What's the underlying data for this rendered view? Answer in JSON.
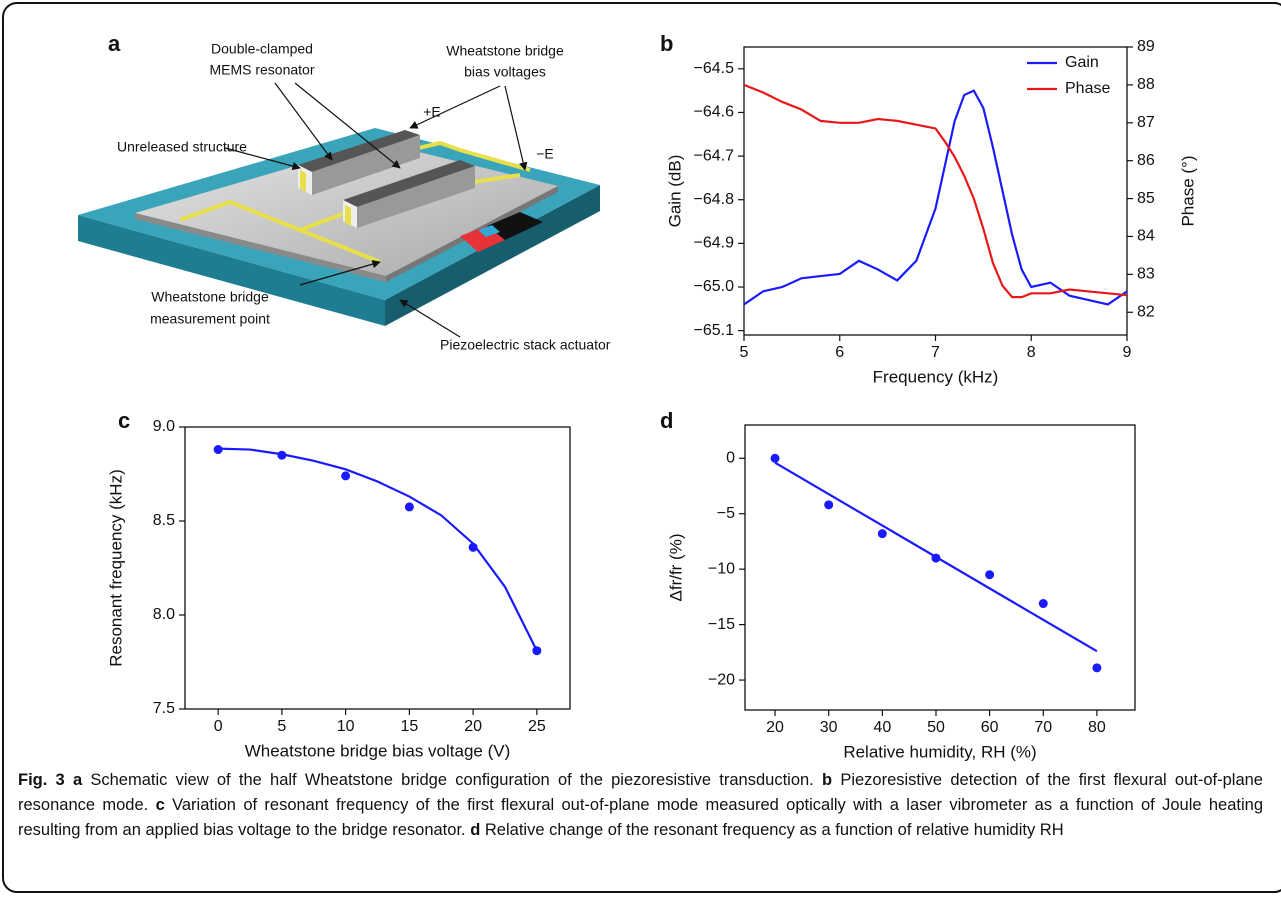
{
  "panel_labels": [
    "a",
    "b",
    "c",
    "d"
  ],
  "schematic": {
    "labels": [
      "Double-clamped",
      "MEMS resonator",
      "Wheatstone bridge",
      "bias voltages",
      "+E",
      "−E",
      "Unreleased structure",
      "Wheatstone bridge",
      "measurement point",
      "Piezoelectric stack actuator"
    ]
  },
  "chart_data": [
    {
      "type": "line",
      "x_label": "Frequency (kHz)",
      "y_label": "Gain (dB)",
      "y2_label": "Phase (°)",
      "x": [
        5,
        5.2,
        5.4,
        5.6,
        5.8,
        6.0,
        6.2,
        6.4,
        6.6,
        6.8,
        7.0,
        7.1,
        7.2,
        7.3,
        7.4,
        7.5,
        7.6,
        7.7,
        7.8,
        7.9,
        8.0,
        8.2,
        8.4,
        8.6,
        8.8,
        9.0
      ],
      "series": [
        {
          "name": "Gain",
          "color": "#1a1aff",
          "values": [
            -65.04,
            -65.01,
            -65.0,
            -64.98,
            -64.975,
            -64.97,
            -64.94,
            -64.96,
            -64.985,
            -64.94,
            -64.82,
            -64.72,
            -64.62,
            -64.56,
            -64.55,
            -64.59,
            -64.68,
            -64.78,
            -64.88,
            -64.96,
            -65.0,
            -64.99,
            -65.02,
            -65.03,
            -65.04,
            -65.01
          ]
        },
        {
          "name": "Phase",
          "color": "#e8181a",
          "axis": "y2",
          "values": [
            88.0,
            87.8,
            87.55,
            87.35,
            87.05,
            87.0,
            87.0,
            87.1,
            87.05,
            86.95,
            86.85,
            86.5,
            86.1,
            85.6,
            85.0,
            84.2,
            83.3,
            82.7,
            82.4,
            82.4,
            82.5,
            82.5,
            82.6,
            82.55,
            82.5,
            82.45
          ]
        }
      ],
      "xlim": [
        5,
        9
      ],
      "xticks": [
        5,
        6,
        7,
        8,
        9
      ],
      "ylim": [
        -65.11,
        -64.45
      ],
      "yticks": [
        {
          "value": -64.5,
          "label": "−64.5"
        },
        {
          "value": -64.6,
          "label": "−64.6"
        },
        {
          "value": -64.7,
          "label": "−64.7"
        },
        {
          "value": -64.8,
          "label": "−64.8"
        },
        {
          "value": -64.9,
          "label": "−64.9"
        },
        {
          "value": -65.0,
          "label": "−65.0"
        },
        {
          "value": -65.1,
          "label": "−65.1"
        }
      ],
      "y2lim": [
        81.4,
        89
      ],
      "y2ticks": [
        82,
        83,
        84,
        85,
        86,
        87,
        88,
        89
      ],
      "legend": "upper right"
    },
    {
      "type": "scatter",
      "x_label": "Wheatstone bridge bias voltage (V)",
      "y_label": "Resonant frequency (kHz)",
      "series": [
        {
          "color": "#1a1aff",
          "style": "markers",
          "x": [
            0,
            5,
            10,
            15,
            20,
            25
          ],
          "values": [
            8.88,
            8.85,
            8.74,
            8.575,
            8.36,
            7.81
          ]
        },
        {
          "color": "#1a1aff",
          "style": "line",
          "x": [
            0,
            2.5,
            5,
            7.5,
            10,
            12.5,
            15,
            17.5,
            20,
            22.5,
            25
          ],
          "values": [
            8.885,
            8.88,
            8.855,
            8.82,
            8.775,
            8.71,
            8.63,
            8.53,
            8.38,
            8.15,
            7.81
          ]
        }
      ],
      "xlim": [
        -2.6,
        27.6
      ],
      "xticks": [
        0,
        5,
        10,
        15,
        20,
        25
      ],
      "ylim": [
        7.5,
        9.0
      ],
      "yticks": [
        7.5,
        {
          "value": 8.0,
          "label": "8.0"
        },
        8.5,
        {
          "value": 9.0,
          "label": "9.0"
        }
      ]
    },
    {
      "type": "scatter",
      "x_label": "Relative humidity, RH (%)",
      "y_label": "Δfr/fr (%)",
      "series": [
        {
          "color": "#1a1aff",
          "style": "markers",
          "x": [
            20,
            30,
            40,
            50,
            60,
            70,
            80
          ],
          "values": [
            0,
            -4.2,
            -6.8,
            -9.0,
            -10.5,
            -13.1,
            -18.9
          ]
        },
        {
          "color": "#1a1aff",
          "style": "line",
          "x": [
            20,
            80
          ],
          "values": [
            -0.4,
            -17.4
          ]
        }
      ],
      "xlim": [
        14.4,
        87.1
      ],
      "xticks": [
        20,
        30,
        40,
        50,
        60,
        70,
        80
      ],
      "ylim": [
        -22.7,
        3.0
      ],
      "yticks": [
        0,
        {
          "value": -5,
          "label": "−5"
        },
        {
          "value": -10,
          "label": "−10"
        },
        {
          "value": -15,
          "label": "−15"
        },
        {
          "value": -20,
          "label": "−20"
        }
      ]
    }
  ],
  "caption": {
    "parts": [
      {
        "text": "Fig. 3 a",
        "bold": true
      },
      {
        "text": " Schematic view of the half Wheatstone bridge configuration of the piezoresistive transduction. ",
        "bold": false
      },
      {
        "text": "b",
        "bold": true
      },
      {
        "text": " Piezoresistive detection of the first flexural out-of-plane resonance mode. ",
        "bold": false
      },
      {
        "text": "c",
        "bold": true
      },
      {
        "text": " Variation of resonant frequency of the first flexural out-of-plane mode measured optically with a laser vibrometer as a function of Joule heating resulting from an applied bias voltage to the bridge resonator. ",
        "bold": false
      },
      {
        "text": "d",
        "bold": true
      },
      {
        "text": " Relative change of the resonant frequency as a function of relative humidity RH",
        "bold": false
      }
    ]
  }
}
